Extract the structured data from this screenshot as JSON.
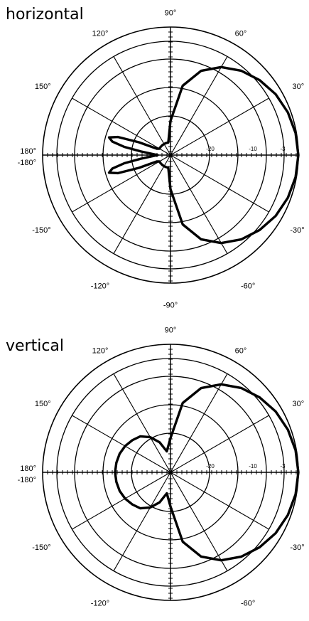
{
  "chart_data": [
    {
      "type": "polar",
      "title": "horizontal",
      "angle_labels": [
        {
          "angle": 90,
          "text": "90°"
        },
        {
          "angle": 60,
          "text": "60°"
        },
        {
          "angle": 30,
          "text": "30°"
        },
        {
          "angle": 120,
          "text": "120°"
        },
        {
          "angle": 150,
          "text": "150°"
        },
        {
          "angle": 180,
          "text": "180°"
        },
        {
          "angle": -180,
          "text": "-180°"
        },
        {
          "angle": -150,
          "text": "-150°"
        },
        {
          "angle": -120,
          "text": "-120°"
        },
        {
          "angle": -90,
          "text": "-90°"
        },
        {
          "angle": -60,
          "text": "-60°"
        },
        {
          "angle": -30,
          "text": "-30°"
        }
      ],
      "radial_labels": [
        {
          "value": -20,
          "text": "-20"
        },
        {
          "value": -10,
          "text": "-10"
        },
        {
          "value": -3,
          "text": "-3"
        }
      ],
      "series": [
        {
          "points": [
            {
              "angle": 0,
              "value": 0
            },
            {
              "angle": 10,
              "value": -0.2
            },
            {
              "angle": 20,
              "value": -0.7
            },
            {
              "angle": 30,
              "value": -1.5
            },
            {
              "angle": 40,
              "value": -2.7
            },
            {
              "angle": 50,
              "value": -4.2
            },
            {
              "angle": 60,
              "value": -6.2
            },
            {
              "angle": 70,
              "value": -9.0
            },
            {
              "angle": 80,
              "value": -13.5
            },
            {
              "angle": 90,
              "value": -22
            },
            {
              "angle": 100,
              "value": -27
            },
            {
              "angle": 110,
              "value": -27
            },
            {
              "angle": 120,
              "value": -27
            },
            {
              "angle": 130,
              "value": -27
            },
            {
              "angle": 140,
              "value": -27
            },
            {
              "angle": 150,
              "value": -27
            },
            {
              "angle": 155,
              "value": -26.5
            },
            {
              "angle": 158,
              "value": -22
            },
            {
              "angle": 161,
              "value": -17
            },
            {
              "angle": 164,
              "value": -15
            },
            {
              "angle": 167,
              "value": -16
            },
            {
              "angle": 170,
              "value": -19
            },
            {
              "angle": 173,
              "value": -23
            },
            {
              "angle": 180,
              "value": -27
            },
            {
              "angle": -173,
              "value": -23
            },
            {
              "angle": -170,
              "value": -19
            },
            {
              "angle": -167,
              "value": -16
            },
            {
              "angle": -164,
              "value": -15
            },
            {
              "angle": -161,
              "value": -17
            },
            {
              "angle": -158,
              "value": -22
            },
            {
              "angle": -155,
              "value": -26.5
            },
            {
              "angle": -150,
              "value": -27
            },
            {
              "angle": -140,
              "value": -27
            },
            {
              "angle": -130,
              "value": -27
            },
            {
              "angle": -120,
              "value": -27
            },
            {
              "angle": -110,
              "value": -27
            },
            {
              "angle": -100,
              "value": -27
            },
            {
              "angle": -90,
              "value": -22
            },
            {
              "angle": -80,
              "value": -13.5
            },
            {
              "angle": -70,
              "value": -9.0
            },
            {
              "angle": -60,
              "value": -6.2
            },
            {
              "angle": -50,
              "value": -4.2
            },
            {
              "angle": -40,
              "value": -2.7
            },
            {
              "angle": -30,
              "value": -1.5
            },
            {
              "angle": -20,
              "value": -0.7
            },
            {
              "angle": -10,
              "value": -0.2
            }
          ]
        }
      ]
    },
    {
      "type": "polar",
      "title": "vertical",
      "angle_labels": [
        {
          "angle": 90,
          "text": "90°"
        },
        {
          "angle": 60,
          "text": "60°"
        },
        {
          "angle": 30,
          "text": "30°"
        },
        {
          "angle": 120,
          "text": "120°"
        },
        {
          "angle": 150,
          "text": "150°"
        },
        {
          "angle": 180,
          "text": "180°"
        },
        {
          "angle": -180,
          "text": "-180°"
        },
        {
          "angle": -150,
          "text": "-150°"
        },
        {
          "angle": -120,
          "text": "-120°"
        },
        {
          "angle": -90,
          "text": "-90°"
        },
        {
          "angle": -60,
          "text": "-60°"
        },
        {
          "angle": -30,
          "text": "-30°"
        }
      ],
      "radial_labels": [
        {
          "value": -20,
          "text": "-20"
        },
        {
          "value": -10,
          "text": "-10"
        },
        {
          "value": -3,
          "text": "-3"
        }
      ],
      "series": [
        {
          "points": [
            {
              "angle": 0,
              "value": 0
            },
            {
              "angle": 10,
              "value": -0.2
            },
            {
              "angle": 20,
              "value": -0.7
            },
            {
              "angle": 30,
              "value": -1.5
            },
            {
              "angle": 40,
              "value": -2.7
            },
            {
              "angle": 50,
              "value": -4.2
            },
            {
              "angle": 60,
              "value": -6.2
            },
            {
              "angle": 70,
              "value": -9.0
            },
            {
              "angle": 80,
              "value": -13.5
            },
            {
              "angle": 90,
              "value": -22
            },
            {
              "angle": 100,
              "value": -25
            },
            {
              "angle": 110,
              "value": -22.5
            },
            {
              "angle": 120,
              "value": -20.5
            },
            {
              "angle": 130,
              "value": -19
            },
            {
              "angle": 140,
              "value": -18.3
            },
            {
              "angle": 150,
              "value": -17.7
            },
            {
              "angle": 160,
              "value": -17.3
            },
            {
              "angle": 170,
              "value": -17.1
            },
            {
              "angle": 180,
              "value": -17
            },
            {
              "angle": -170,
              "value": -17.1
            },
            {
              "angle": -160,
              "value": -17.3
            },
            {
              "angle": -150,
              "value": -17.7
            },
            {
              "angle": -140,
              "value": -18.3
            },
            {
              "angle": -130,
              "value": -19
            },
            {
              "angle": -120,
              "value": -20.5
            },
            {
              "angle": -110,
              "value": -22.5
            },
            {
              "angle": -100,
              "value": -25
            },
            {
              "angle": -90,
              "value": -22
            },
            {
              "angle": -80,
              "value": -13.5
            },
            {
              "angle": -70,
              "value": -9.0
            },
            {
              "angle": -60,
              "value": -6.2
            },
            {
              "angle": -50,
              "value": -4.2
            },
            {
              "angle": -40,
              "value": -2.7
            },
            {
              "angle": -30,
              "value": -1.5
            },
            {
              "angle": -20,
              "value": -0.7
            },
            {
              "angle": -10,
              "value": -0.2
            }
          ]
        }
      ]
    }
  ]
}
